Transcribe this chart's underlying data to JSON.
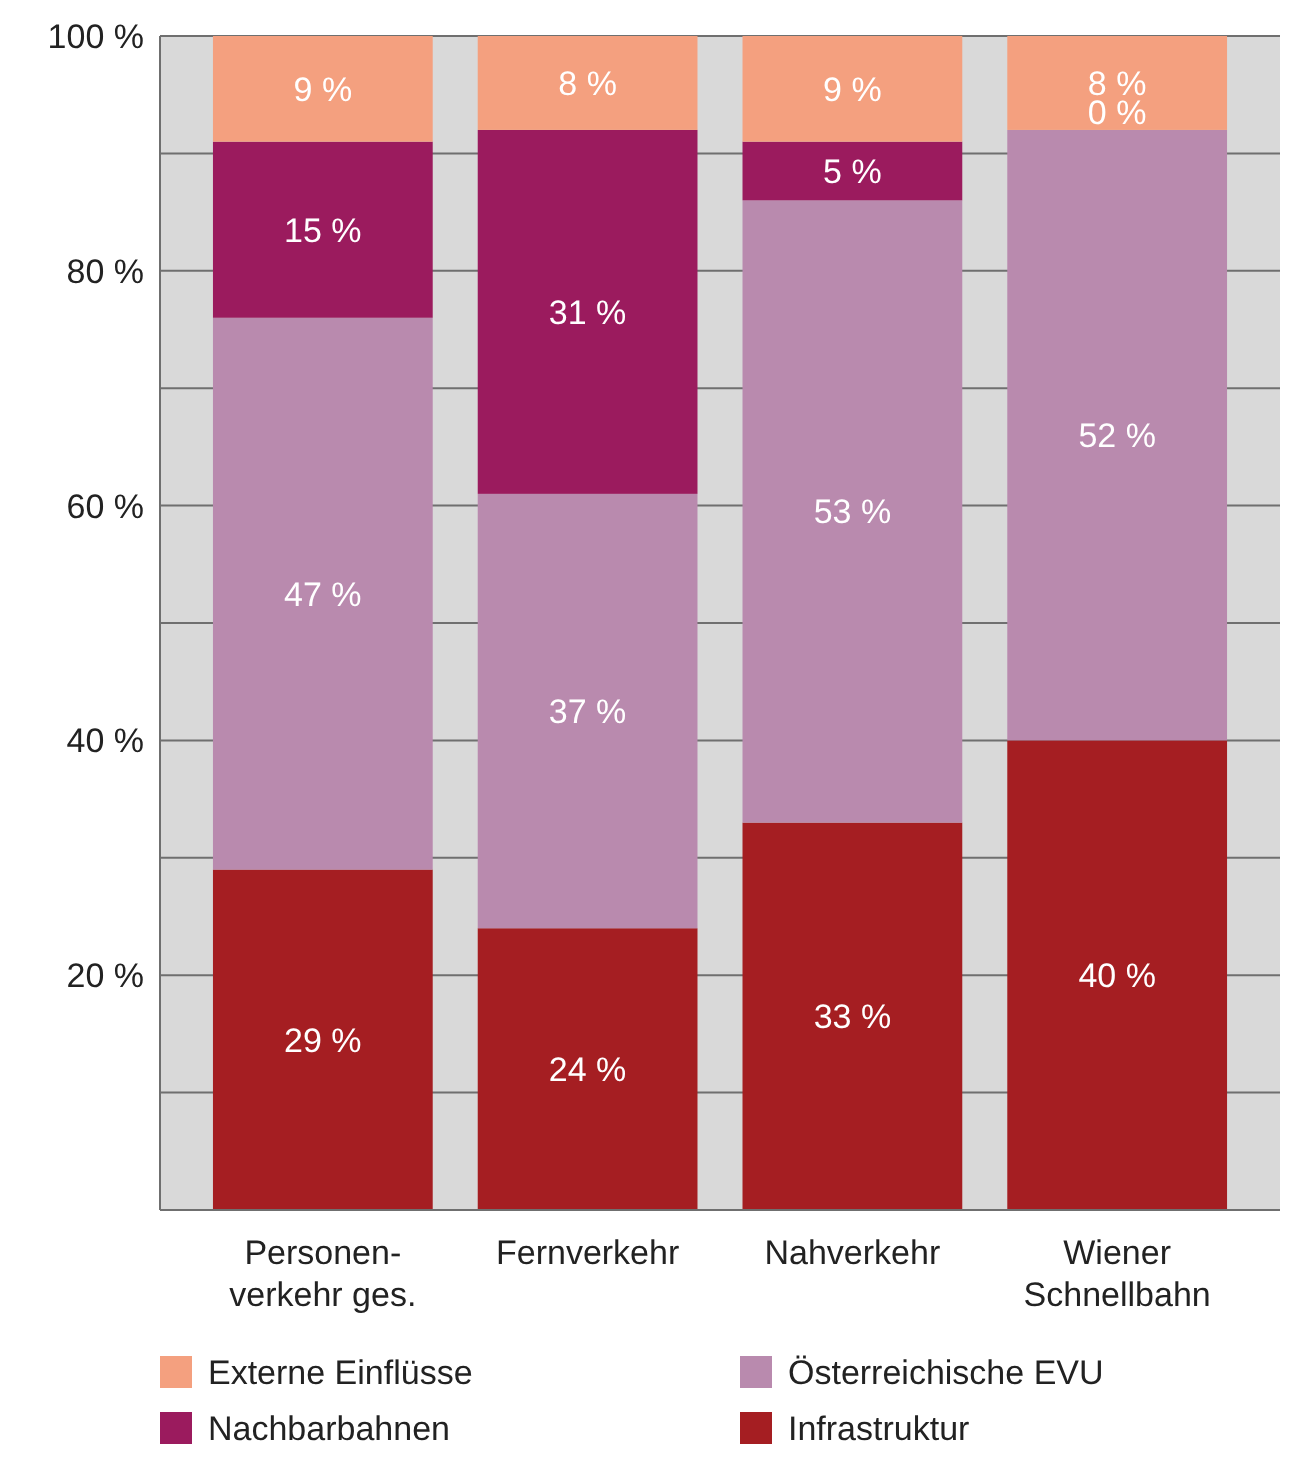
{
  "chart_data": {
    "type": "bar",
    "stacked": true,
    "categories": [
      "Personen-\nverkehr ges.",
      "Fernverkehr",
      "Nahverkehr",
      "Wiener\nSchnellbahn"
    ],
    "series": [
      {
        "name": "Infrastruktur",
        "color": "#a51e22",
        "values": [
          29,
          24,
          33,
          40
        ],
        "value_labels": [
          "29 %",
          "24 %",
          "33 %",
          "40 %"
        ]
      },
      {
        "name": "Österreichische EVU",
        "color": "#b98aae",
        "values": [
          47,
          37,
          53,
          52
        ],
        "value_labels": [
          "47 %",
          "37 %",
          "53 %",
          "52 %"
        ]
      },
      {
        "name": "Nachbarbahnen",
        "color": "#9b1b5e",
        "values": [
          15,
          31,
          5,
          0
        ],
        "value_labels": [
          "15 %",
          "31 %",
          "5 %",
          "0 %"
        ]
      },
      {
        "name": "Externe Einflüsse",
        "color": "#f4a07f",
        "values": [
          9,
          8,
          9,
          8
        ],
        "value_labels": [
          "9 %",
          "8 %",
          "9 %",
          "8 %"
        ]
      }
    ],
    "ylim": [
      0,
      100
    ],
    "yticks": [
      {
        "value": 10,
        "label": null
      },
      {
        "value": 20,
        "label": "20 %"
      },
      {
        "value": 30,
        "label": null
      },
      {
        "value": 40,
        "label": "40 %"
      },
      {
        "value": 50,
        "label": null
      },
      {
        "value": 60,
        "label": "60 %"
      },
      {
        "value": 70,
        "label": null
      },
      {
        "value": 80,
        "label": "80 %"
      },
      {
        "value": 90,
        "label": null
      },
      {
        "value": 100,
        "label": "100 %"
      }
    ],
    "grid": "y",
    "legend": "bottom"
  }
}
